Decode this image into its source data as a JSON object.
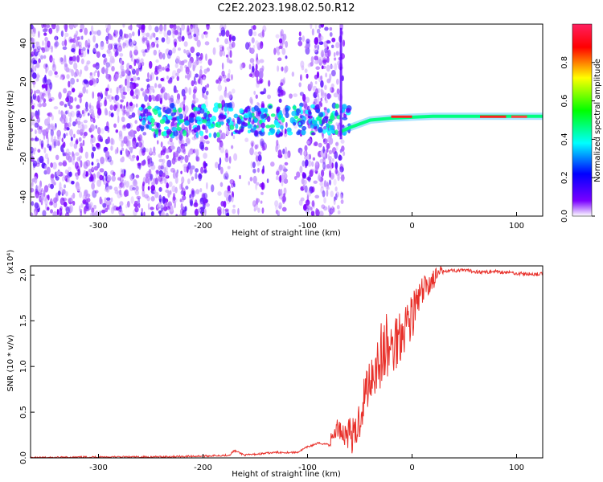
{
  "title": "C2E2.2023.198.02.50.R12",
  "spectrogram": {
    "xlabel": "Height of straight line (km)",
    "ylabel": "Frequency (Hz)",
    "xlim": [
      -365,
      125
    ],
    "ylim": [
      -50,
      50
    ],
    "xticks": [
      -300,
      -200,
      -100,
      0,
      100
    ],
    "yticks": [
      -40,
      -20,
      0,
      20,
      40
    ],
    "colorbar": {
      "label": "Normalized spectral amplitude",
      "range": [
        0.0,
        1.0
      ],
      "ticks": [
        "0.0",
        "0.2",
        "0.4",
        "0.6",
        "0.8"
      ],
      "colors": [
        "#ffffff",
        "#7a00ff",
        "#0000ff",
        "#00ffff",
        "#00ff00",
        "#ffff00",
        "#ff0000",
        "#ff2060"
      ]
    }
  },
  "chart_data": {
    "type": "line",
    "title": "",
    "xlabel": "Height of straight line (km)",
    "ylabel": "SNR (10 * v/v)",
    "scale_label": "(x10⁴)",
    "xlim": [
      -365,
      125
    ],
    "ylim": [
      0,
      2.1
    ],
    "xticks": [
      -300,
      -200,
      -100,
      0,
      100
    ],
    "yticks": [
      "0.0",
      "0.5",
      "1.0",
      "1.5",
      "2.0"
    ],
    "line_color": "#e8302a",
    "series": [
      {
        "x": [
          -365,
          -300,
          -250,
          -200,
          -175,
          -170,
          -160,
          -150,
          -130,
          -110,
          -100,
          -90,
          -80,
          -70,
          -65,
          -60,
          -55,
          -50,
          -45,
          -40,
          -35,
          -30,
          -25,
          -20,
          -15,
          -10,
          -5,
          0,
          5,
          10,
          15,
          20,
          25,
          30,
          40,
          50,
          60,
          70,
          80,
          90,
          100,
          110,
          125
        ],
        "y": [
          0.0,
          0.01,
          0.01,
          0.02,
          0.03,
          0.08,
          0.03,
          0.04,
          0.06,
          0.06,
          0.12,
          0.16,
          0.15,
          0.35,
          0.25,
          0.3,
          0.2,
          0.45,
          0.7,
          0.9,
          1.0,
          1.1,
          1.2,
          1.15,
          1.3,
          1.4,
          1.5,
          1.55,
          1.7,
          1.8,
          1.9,
          1.95,
          2.0,
          2.05,
          2.05,
          2.05,
          2.04,
          2.03,
          2.04,
          2.03,
          2.02,
          2.01,
          2.01
        ]
      }
    ]
  }
}
